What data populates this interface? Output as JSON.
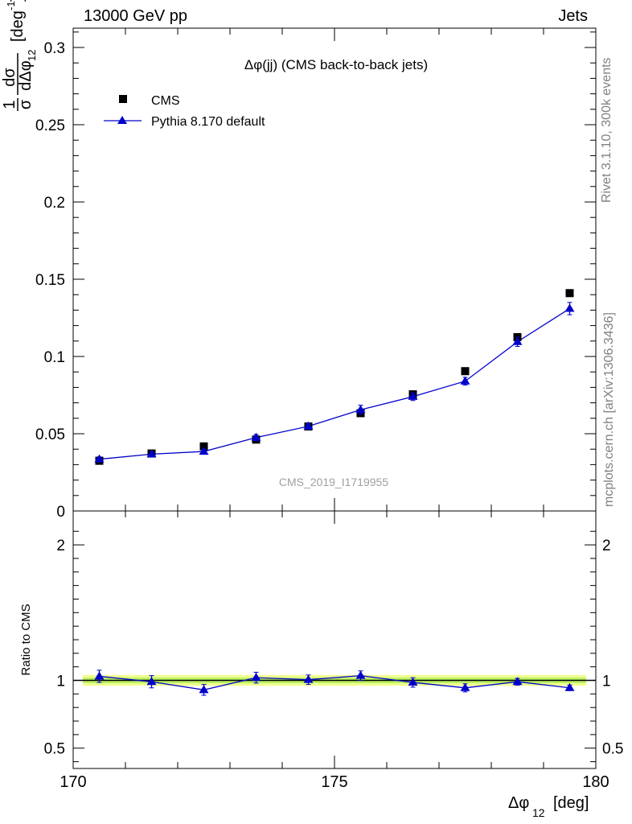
{
  "header": {
    "left": "13000 GeV pp",
    "right": "Jets"
  },
  "side": {
    "rivet": "Rivet 3.1.10,  300k events",
    "mcplots": "mcplots.cern.ch [arXiv:1306.3436]"
  },
  "colors": {
    "cms": "#000000",
    "pythia": "#0000cc",
    "band_outer": "#f0ff90",
    "band_inner": "#b9f060"
  },
  "chart_data": [
    {
      "type": "scatter",
      "title": "Δφ(jj) (CMS back-to-back jets)",
      "watermark": "CMS_2019_I1719955",
      "ylabel_parts": {
        "one": "1",
        "dsigma": "dσ",
        "sigma": "σ",
        "dphi": "dΔφ",
        "sub": "12",
        "unit": "[deg",
        "unit_exp": "-1",
        "unit_close": "]"
      },
      "xlim": [
        170,
        180
      ],
      "ylim": [
        0,
        0.3125
      ],
      "yticks": [
        0,
        0.05,
        0.1,
        0.15,
        0.2,
        0.25,
        0.3
      ],
      "ytick_labels": [
        "0",
        "0.05",
        "0.1",
        "0.15",
        "0.2",
        "0.25",
        "0.3"
      ],
      "legend": [
        "CMS",
        "Pythia 8.170 default"
      ],
      "legend_position": "top-left",
      "series": [
        {
          "name": "CMS",
          "x": [
            170.5,
            171.5,
            172.5,
            173.5,
            174.5,
            175.5,
            176.5,
            177.5,
            178.5,
            179.5
          ],
          "y": [
            0.0325,
            0.0372,
            0.0418,
            0.0462,
            0.0547,
            0.0633,
            0.0755,
            0.0905,
            0.1125,
            0.141
          ]
        },
        {
          "name": "Pythia 8.170 default",
          "x": [
            170.5,
            171.5,
            172.5,
            173.5,
            174.5,
            175.5,
            176.5,
            177.5,
            178.5,
            179.5
          ],
          "y": [
            0.0335,
            0.0368,
            0.0385,
            0.0475,
            0.0548,
            0.0655,
            0.074,
            0.084,
            0.1095,
            0.131
          ],
          "yerr": [
            0.0015,
            0.0015,
            0.0015,
            0.002,
            0.002,
            0.003,
            0.0025,
            0.0025,
            0.003,
            0.004
          ]
        }
      ]
    },
    {
      "type": "scatter",
      "ylabel": "Ratio to CMS",
      "xlabel_main": "Δφ",
      "xlabel_sub": "12",
      "xlabel_unit": "[deg]",
      "xlim": [
        170,
        180
      ],
      "ylim": [
        0.35,
        2.25
      ],
      "yticks": [
        0.5,
        1,
        2
      ],
      "ytick_labels": [
        "0.5",
        "1",
        "2"
      ],
      "xticks": [
        170,
        175,
        180
      ],
      "xtick_labels": [
        "170",
        "175",
        "180"
      ],
      "reference": 1,
      "band": {
        "outer": 0.04,
        "inner": 0.02
      },
      "series": [
        {
          "name": "Pythia 8.170 default",
          "x": [
            170.5,
            171.5,
            172.5,
            173.5,
            174.5,
            175.5,
            176.5,
            177.5,
            178.5,
            179.5
          ],
          "y": [
            1.03,
            0.99,
            0.93,
            1.02,
            1.005,
            1.035,
            0.985,
            0.945,
            0.99,
            0.945
          ],
          "yerr": [
            0.045,
            0.045,
            0.04,
            0.04,
            0.035,
            0.035,
            0.035,
            0.03,
            0.025,
            0.02
          ]
        }
      ]
    }
  ]
}
